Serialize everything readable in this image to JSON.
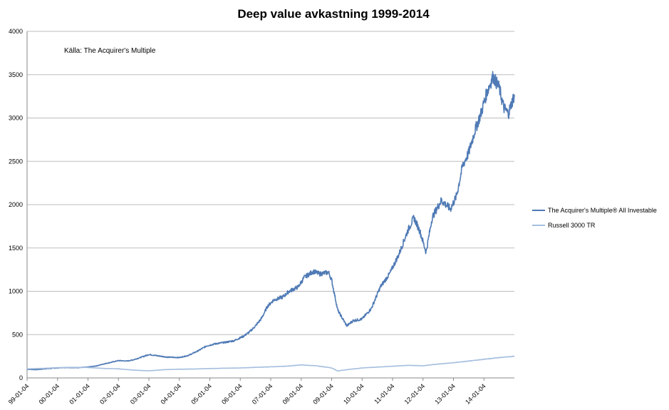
{
  "chart_data": {
    "type": "line",
    "title": "Deep value avkastning 1999-2014",
    "annotation": "Källa: The Acquirer's Multiple",
    "xlabel": "",
    "ylabel": "",
    "ylim": [
      0,
      4000
    ],
    "yticks": [
      0,
      500,
      1000,
      1500,
      2000,
      2500,
      3000,
      3500,
      4000
    ],
    "grid": true,
    "legend_position": "right",
    "x_range": [
      1999.0,
      2015.0
    ],
    "xtick_labels": [
      {
        "label": "99-01-04",
        "x": 1999.0
      },
      {
        "label": "00-01-04",
        "x": 2000.0
      },
      {
        "label": "01-01-04",
        "x": 2001.0
      },
      {
        "label": "02-01-04",
        "x": 2002.0
      },
      {
        "label": "03-01-04",
        "x": 2003.0
      },
      {
        "label": "04-01-04",
        "x": 2004.0
      },
      {
        "label": "05-01-04",
        "x": 2005.0
      },
      {
        "label": "06-01-04",
        "x": 2006.0
      },
      {
        "label": "07-01-04",
        "x": 2007.0
      },
      {
        "label": "08-01-04",
        "x": 2008.0
      },
      {
        "label": "09-01-04",
        "x": 2009.0
      },
      {
        "label": "10-01-04",
        "x": 2010.0
      },
      {
        "label": "11-01-04",
        "x": 2011.0
      },
      {
        "label": "12-01-04",
        "x": 2012.0
      },
      {
        "label": "13-01-04",
        "x": 2013.0
      },
      {
        "label": "14-01-04",
        "x": 2014.0
      }
    ],
    "series": [
      {
        "name": "The Acquirer's Multiple® All Investable",
        "color": "#4f7ab5",
        "x": [
          1999.0,
          1999.3,
          1999.6,
          2000.0,
          2000.3,
          2000.6,
          2001.0,
          2001.3,
          2001.5,
          2001.7,
          2002.0,
          2002.3,
          2002.5,
          2002.8,
          2003.0,
          2003.3,
          2003.6,
          2004.0,
          2004.3,
          2004.6,
          2004.9,
          2005.2,
          2005.5,
          2005.8,
          2006.1,
          2006.3,
          2006.5,
          2006.7,
          2006.9,
          2007.1,
          2007.4,
          2007.6,
          2007.9,
          2008.1,
          2008.4,
          2008.6,
          2008.9,
          2009.0,
          2009.2,
          2009.5,
          2009.7,
          2010.0,
          2010.3,
          2010.6,
          2010.9,
          2011.2,
          2011.5,
          2011.7,
          2011.9,
          2012.1,
          2012.3,
          2012.6,
          2012.9,
          2013.1,
          2013.3,
          2013.5,
          2013.7,
          2013.9,
          2014.1,
          2014.3,
          2014.5,
          2014.65,
          2014.8,
          2015.0
        ],
        "values": [
          100,
          95,
          105,
          115,
          120,
          118,
          125,
          140,
          160,
          175,
          200,
          195,
          210,
          245,
          270,
          255,
          240,
          235,
          260,
          310,
          370,
          395,
          410,
          430,
          480,
          530,
          600,
          690,
          830,
          900,
          935,
          1000,
          1050,
          1160,
          1230,
          1200,
          1220,
          1130,
          780,
          600,
          660,
          680,
          800,
          1050,
          1200,
          1420,
          1700,
          1850,
          1690,
          1450,
          1850,
          2050,
          1950,
          2100,
          2450,
          2600,
          2850,
          3050,
          3300,
          3480,
          3350,
          3120,
          3050,
          3270
        ]
      },
      {
        "name": "Russell 3000 TR",
        "color": "#a6bfdf",
        "x": [
          1999.0,
          1999.5,
          2000.0,
          2000.5,
          2001.0,
          2001.5,
          2002.0,
          2002.5,
          2003.0,
          2003.5,
          2004.0,
          2004.5,
          2005.0,
          2005.5,
          2006.0,
          2006.5,
          2007.0,
          2007.5,
          2008.0,
          2008.5,
          2009.0,
          2009.2,
          2009.5,
          2010.0,
          2010.5,
          2011.0,
          2011.5,
          2012.0,
          2012.5,
          2013.0,
          2013.5,
          2014.0,
          2014.5,
          2015.0
        ],
        "values": [
          105,
          110,
          118,
          122,
          120,
          110,
          105,
          90,
          82,
          95,
          100,
          103,
          108,
          112,
          115,
          122,
          128,
          135,
          150,
          140,
          115,
          80,
          95,
          115,
          125,
          135,
          145,
          140,
          160,
          175,
          195,
          215,
          235,
          250
        ]
      }
    ]
  }
}
